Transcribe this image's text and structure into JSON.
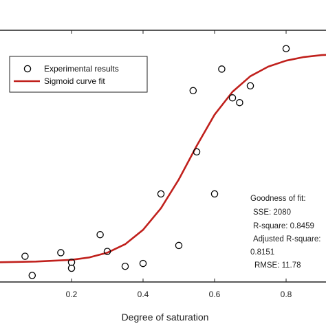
{
  "chart_data": {
    "type": "scatter",
    "title": "",
    "xlabel": "Degree of saturation",
    "ylabel": "",
    "xlim": [
      0.0,
      1.0
    ],
    "ylim": [
      0,
      100
    ],
    "grid": false,
    "legend_position": "top-left",
    "x_ticks": [
      "0.2",
      "0.4",
      "0.6",
      "0.8"
    ],
    "x_tick_values": [
      0.2,
      0.4,
      0.6,
      0.8
    ],
    "series": [
      {
        "name": "Experimental results",
        "kind": "scatter",
        "marker": "open-circle",
        "color": "#000000",
        "x": [
          0.07,
          0.09,
          0.17,
          0.2,
          0.2,
          0.28,
          0.3,
          0.35,
          0.4,
          0.45,
          0.5,
          0.54,
          0.55,
          0.6,
          0.62,
          0.65,
          0.67,
          0.7,
          0.8
        ],
        "y": [
          9.0,
          1.0,
          10.5,
          6.5,
          4.0,
          18.0,
          11.0,
          4.8,
          6.0,
          35.0,
          13.5,
          78.0,
          52.5,
          35.0,
          87.0,
          75.0,
          73.0,
          80.0,
          95.5
        ]
      },
      {
        "name": "Sigmoid curve fit",
        "kind": "line",
        "color": "#c0201c",
        "x": [
          0.0,
          0.1,
          0.2,
          0.25,
          0.3,
          0.35,
          0.4,
          0.45,
          0.5,
          0.55,
          0.6,
          0.65,
          0.7,
          0.75,
          0.8,
          0.85,
          0.9,
          0.95,
          1.0
        ],
        "y": [
          6.5,
          6.8,
          7.5,
          8.5,
          10.5,
          14.0,
          20.0,
          29.0,
          41.0,
          55.0,
          68.0,
          77.5,
          84.0,
          88.0,
          90.5,
          92.0,
          92.8,
          93.2,
          93.4
        ]
      }
    ],
    "annotations": [
      "Goodness of fit:",
      "SSE: 2080",
      "R-square: 0.8459",
      "Adjusted R-square:",
      "0.8151",
      "RMSE: 11.78"
    ]
  }
}
